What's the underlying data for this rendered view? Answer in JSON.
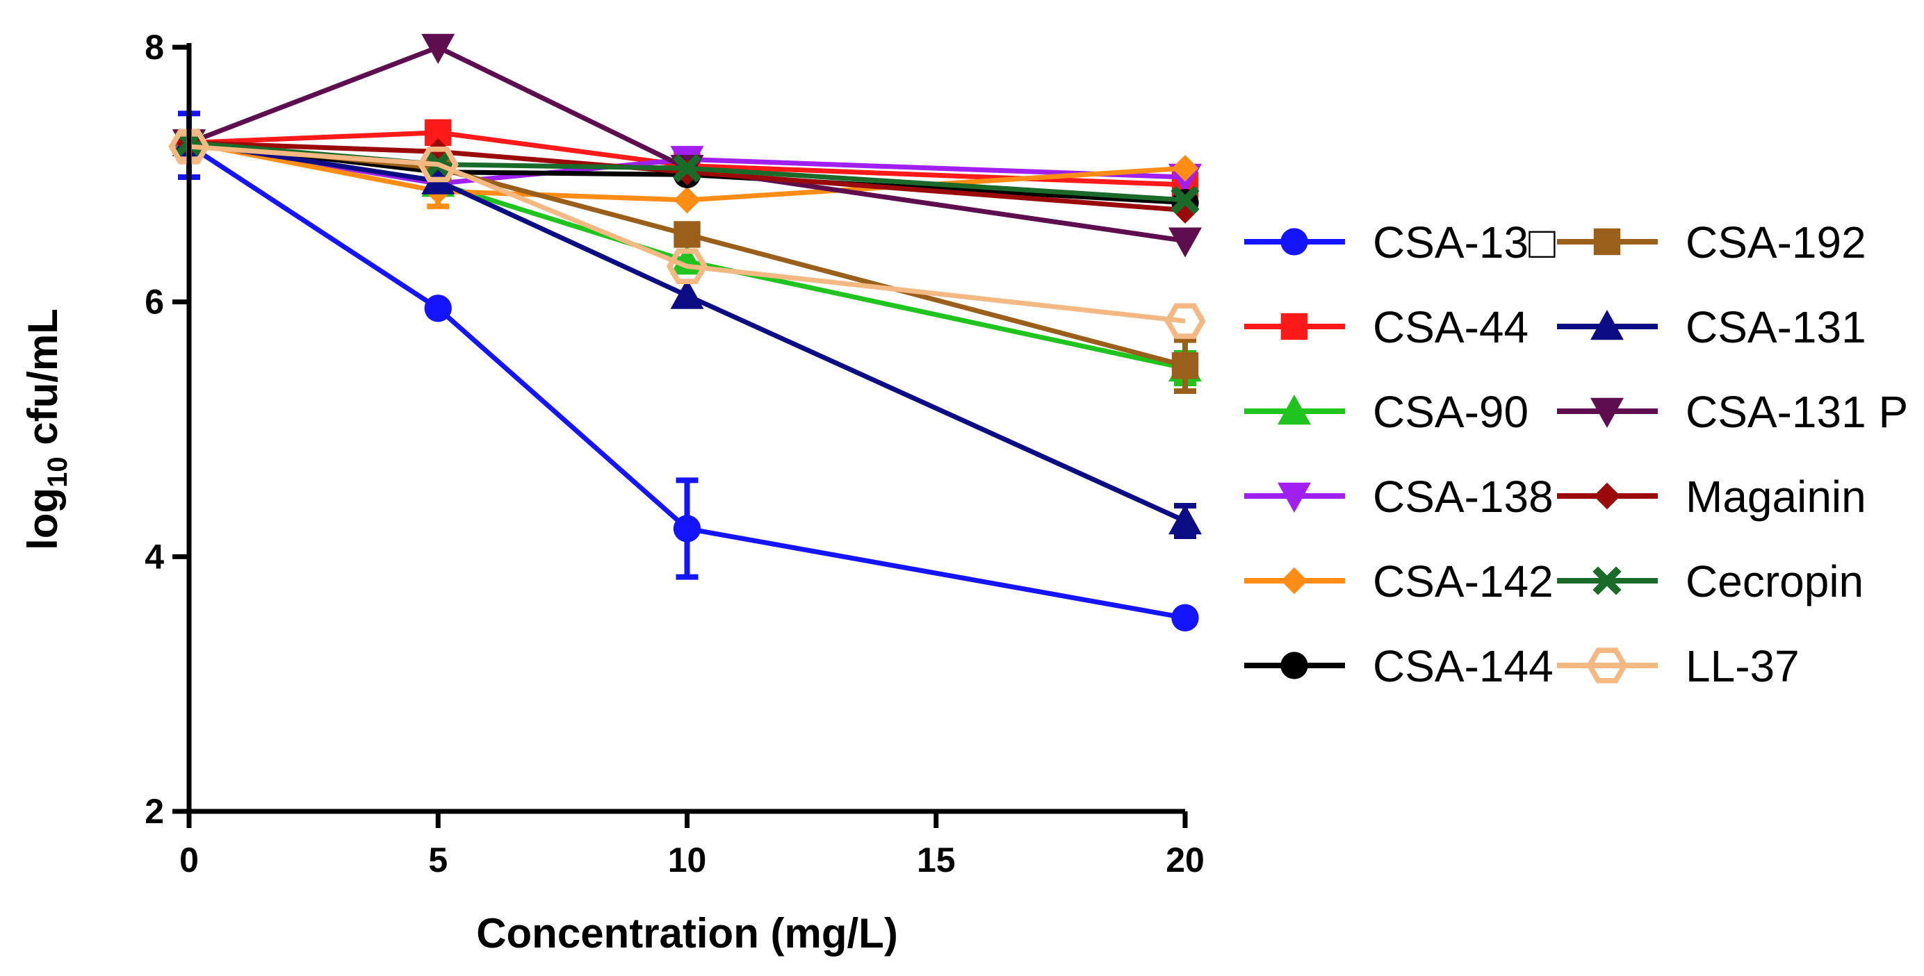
{
  "chart_data": {
    "type": "line",
    "title": "",
    "xlabel": "Concentration (mg/L)",
    "ylabel_main": "log",
    "ylabel_sub": "10",
    "ylabel_rest": " cfu/mL",
    "xlim": [
      0,
      20
    ],
    "ylim": [
      2,
      8
    ],
    "xticks": [
      0,
      5,
      10,
      15,
      20
    ],
    "yticks": [
      2,
      4,
      6,
      8
    ],
    "x": [
      0,
      5,
      10,
      20
    ],
    "legend_position": "right",
    "series": [
      {
        "name": "CSA-13",
        "display": "CSA-13□",
        "color": "#1414ff",
        "marker": "circle",
        "values": [
          7.23,
          5.95,
          4.22,
          3.52
        ],
        "errors": [
          0.25,
          0,
          0.38,
          0
        ]
      },
      {
        "name": "CSA-44",
        "display": "CSA-44",
        "color": "#ff1a1a",
        "marker": "square",
        "values": [
          7.25,
          7.33,
          7.07,
          6.92
        ],
        "errors": [
          0,
          0,
          0,
          0
        ]
      },
      {
        "name": "CSA-90",
        "display": "CSA-90",
        "color": "#1fc41f",
        "marker": "triangle-up",
        "values": [
          7.25,
          6.93,
          6.32,
          5.48
        ],
        "errors": [
          0,
          0,
          0,
          0.12
        ]
      },
      {
        "name": "CSA-138",
        "display": "CSA-138",
        "color": "#a020f0",
        "marker": "triangle-down",
        "values": [
          7.25,
          6.93,
          7.12,
          6.98
        ],
        "errors": [
          0,
          0,
          0,
          0
        ]
      },
      {
        "name": "CSA-142",
        "display": "CSA-142",
        "color": "#ff8c14",
        "marker": "diamond",
        "values": [
          7.25,
          6.87,
          6.8,
          7.05
        ],
        "errors": [
          0,
          0.12,
          0,
          0
        ]
      },
      {
        "name": "CSA-144",
        "display": "CSA-144",
        "color": "#000000",
        "marker": "circle",
        "values": [
          7.25,
          7.02,
          7.0,
          6.78
        ],
        "errors": [
          0,
          0,
          0,
          0
        ]
      },
      {
        "name": "CSA-192",
        "display": "CSA-192",
        "color": "#9a5f1a",
        "marker": "square",
        "values": [
          7.25,
          7.05,
          6.53,
          5.5
        ],
        "errors": [
          0,
          0,
          0,
          0.2
        ]
      },
      {
        "name": "CSA-131",
        "display": "CSA-131",
        "color": "#0c0c85",
        "marker": "triangle-up",
        "values": [
          7.25,
          6.95,
          6.05,
          4.28
        ],
        "errors": [
          0,
          0,
          0,
          0.12
        ]
      },
      {
        "name": "CSA-131 P",
        "display": "CSA-131 P",
        "color": "#5e0e4e",
        "marker": "triangle-down",
        "values": [
          7.25,
          8.0,
          7.05,
          6.48
        ],
        "errors": [
          0,
          0,
          0,
          0
        ]
      },
      {
        "name": "Magainin",
        "display": "Magainin",
        "color": "#9a0a0a",
        "marker": "diamond",
        "values": [
          7.25,
          7.18,
          7.02,
          6.72
        ],
        "errors": [
          0,
          0,
          0,
          0
        ]
      },
      {
        "name": "Cecropin",
        "display": "Cecropin",
        "color": "#1a6b2a",
        "marker": "x",
        "values": [
          7.25,
          7.08,
          7.05,
          6.8
        ],
        "errors": [
          0,
          0,
          0,
          0
        ]
      },
      {
        "name": "LL-37",
        "display": "LL-37",
        "color": "#f4b883",
        "marker": "hexagon-open",
        "values": [
          7.22,
          7.08,
          6.28,
          5.85
        ],
        "errors": [
          0.1,
          0,
          0,
          0
        ]
      }
    ]
  }
}
